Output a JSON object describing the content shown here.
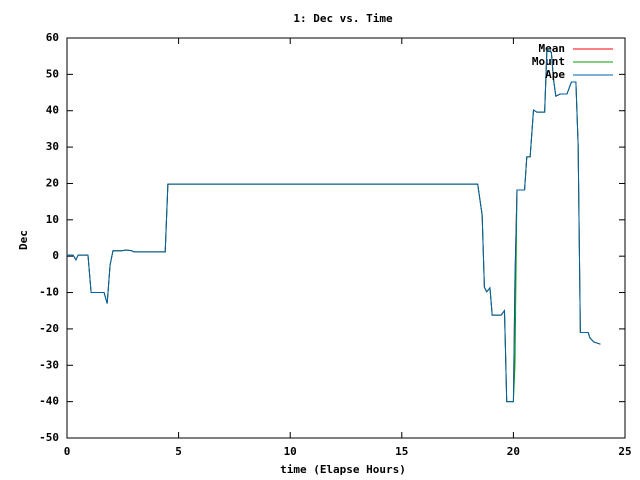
{
  "chart_data": {
    "type": "line",
    "title": "1: Dec vs. Time",
    "x_label": "time (Elapse Hours)",
    "y_label": "Dec",
    "xlim": [
      0,
      25
    ],
    "xticks": [
      0,
      5,
      10,
      15,
      20,
      25
    ],
    "ylim": [
      -50,
      60
    ],
    "yticks": [
      -50,
      -40,
      -30,
      -20,
      -10,
      0,
      10,
      20,
      30,
      40,
      50,
      60
    ],
    "legend": "top-right",
    "x": [
      0,
      0.27,
      0.4,
      0.5,
      0.94,
      1.08,
      1.66,
      1.8,
      1.93,
      2.06,
      2.46,
      2.64,
      2.9,
      3.0,
      4.4,
      4.52,
      18.4,
      18.6,
      18.7,
      18.8,
      18.95,
      19.05,
      19.45,
      19.6,
      19.65,
      19.7,
      20.0,
      20.07,
      20.16,
      20.5,
      20.6,
      20.75,
      20.9,
      21.05,
      21.4,
      21.5,
      21.7,
      21.8,
      21.9,
      22.1,
      22.4,
      22.6,
      22.8,
      22.9,
      23.0,
      23.35,
      23.43,
      23.6,
      23.9
    ],
    "series": [
      {
        "name": "Mean",
        "color": "#ff0000",
        "values": [
          0.3,
          0.3,
          -1,
          0.3,
          0.3,
          -10,
          -10,
          -13,
          -2.4,
          1.5,
          1.5,
          1.7,
          1.5,
          1.2,
          1.2,
          19.8,
          19.8,
          11.3,
          -8.5,
          -9.8,
          -8.7,
          -16.2,
          -16.2,
          -15,
          -27,
          -40,
          -40,
          -6,
          18.2,
          18.2,
          27.3,
          27.3,
          40.2,
          39.6,
          39.6,
          56.7,
          56.1,
          48.5,
          44,
          44.6,
          44.6,
          47.9,
          47.9,
          30.6,
          -21,
          -21,
          -22.5,
          -23.6,
          -24.2
        ]
      },
      {
        "name": "Mount",
        "color": "#00a000",
        "values": [
          0.3,
          0.3,
          -1,
          0.3,
          0.3,
          -10,
          -10,
          -13,
          -2.4,
          1.5,
          1.5,
          1.7,
          1.5,
          1.2,
          1.2,
          19.8,
          19.8,
          11.3,
          -8.5,
          -9.8,
          -8.7,
          -16.2,
          -16.2,
          -15,
          -27,
          -40,
          -40,
          -30,
          18.2,
          18.2,
          27.3,
          27.3,
          40.2,
          39.6,
          39.6,
          56.7,
          56.1,
          48.5,
          44,
          44.6,
          44.6,
          47.9,
          47.9,
          30.6,
          -21,
          -21,
          -22.5,
          -23.6,
          -24.2
        ]
      },
      {
        "name": "Ape",
        "color": "#0060ad",
        "values": [
          0.3,
          0.3,
          -1,
          0.3,
          0.3,
          -10,
          -10,
          -13,
          -2.4,
          1.5,
          1.5,
          1.7,
          1.5,
          1.2,
          1.2,
          19.8,
          19.8,
          11.3,
          -8.5,
          -9.8,
          -8.7,
          -16.2,
          -16.2,
          -15,
          -27,
          -40,
          -40,
          -6,
          18.2,
          18.2,
          27.3,
          27.3,
          40.2,
          39.6,
          39.6,
          56.7,
          56.1,
          48.5,
          44,
          44.6,
          44.6,
          47.9,
          47.9,
          30.6,
          -21,
          -21,
          -22.5,
          -23.6,
          -24.2
        ]
      }
    ]
  }
}
